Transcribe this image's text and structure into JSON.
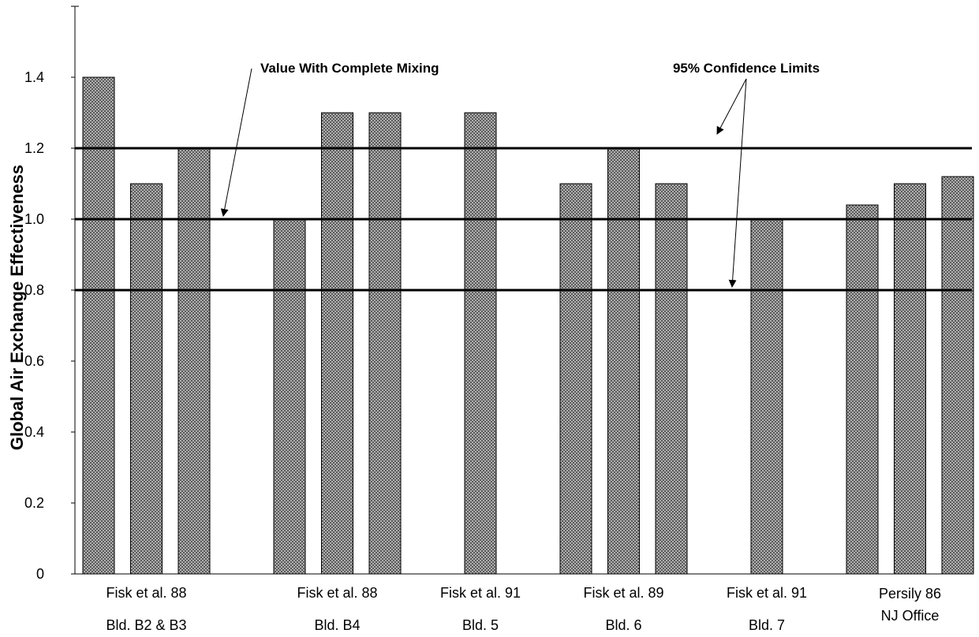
{
  "chart_data": {
    "type": "bar",
    "title": "",
    "ylabel": "Global Air Exchange Effectiveness",
    "xlabel": "",
    "ylim": [
      0,
      1.6
    ],
    "yticks": [
      0,
      0.2,
      0.4,
      0.6,
      0.8,
      1.0,
      1.2,
      1.4
    ],
    "ytick_labels": [
      "0",
      "0.2",
      "0.4",
      "0.6",
      "0.8",
      "1.0",
      "1.2",
      "1.4"
    ],
    "grid": false,
    "legend": "none",
    "bar_fill": "#8c8c8c",
    "groups": [
      {
        "line1": "Fisk et al. 88",
        "line2": "Bld. B2 & B3",
        "values": [
          1.4,
          1.1,
          1.2
        ]
      },
      {
        "line1": "Fisk et al. 88",
        "line2": "Bld. B4",
        "values": [
          1.0,
          1.3,
          1.3
        ]
      },
      {
        "line1": "Fisk et al. 91",
        "line2": "Bld. 5",
        "values": [
          1.3
        ]
      },
      {
        "line1": "Fisk et al. 89",
        "line2": "Bld. 6",
        "values": [
          1.1,
          1.2,
          1.1
        ]
      },
      {
        "line1": "Fisk et al. 91",
        "line2": "Bld. 7",
        "values": [
          1.0
        ]
      },
      {
        "line1": "Persily 86",
        "line2": "NJ Office",
        "values": [
          1.04,
          1.1,
          1.12
        ]
      }
    ],
    "reference_lines": [
      {
        "value": 1.2
      },
      {
        "value": 1.0
      },
      {
        "value": 0.8
      }
    ],
    "annotations": [
      {
        "text": "Value With Complete Mixing",
        "points_to": [
          1.0
        ]
      },
      {
        "text": "95% Confidence Limits",
        "points_to": [
          1.2,
          0.8
        ]
      }
    ]
  }
}
